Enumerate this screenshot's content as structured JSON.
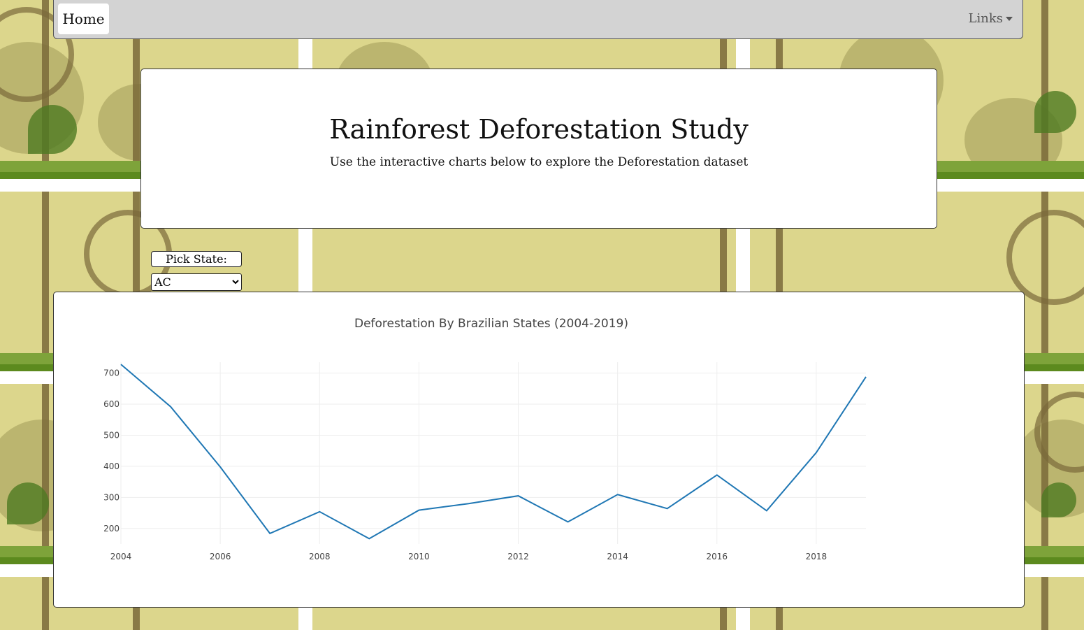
{
  "nav": {
    "home_label": "Home",
    "links_label": "Links"
  },
  "header": {
    "title": "Rainforest Deforestation Study",
    "subtitle": "Use the interactive charts below to explore the Deforestation dataset"
  },
  "picker": {
    "label": "Pick State:",
    "selected": "AC"
  },
  "chart_data": {
    "type": "line",
    "title": "Deforestation By Brazilian States (2004-2019)",
    "xlabel": "",
    "ylabel": "",
    "x": [
      2004,
      2005,
      2006,
      2007,
      2008,
      2009,
      2010,
      2011,
      2012,
      2013,
      2014,
      2015,
      2016,
      2017,
      2018,
      2019
    ],
    "y": [
      728,
      592,
      398,
      184,
      254,
      167,
      259,
      280,
      305,
      221,
      309,
      264,
      372,
      257,
      444,
      688
    ],
    "x_ticks": [
      2004,
      2006,
      2008,
      2010,
      2012,
      2014,
      2016,
      2018
    ],
    "y_ticks": [
      200,
      300,
      400,
      500,
      600,
      700
    ],
    "xlim": [
      2004,
      2019
    ],
    "ylim": [
      150,
      735
    ],
    "grid": true,
    "line_color": "#1f77b4"
  }
}
